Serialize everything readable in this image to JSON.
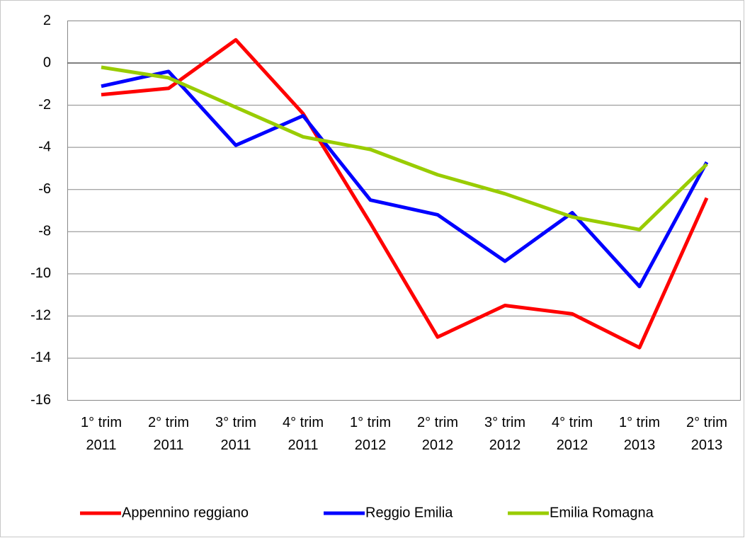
{
  "chart_data": {
    "type": "line",
    "categories": [
      "1° trim 2011",
      "2° trim 2011",
      "3° trim 2011",
      "4° trim 2011",
      "1° trim 2012",
      "2° trim 2012",
      "3° trim 2012",
      "4° trim 2012",
      "1° trim 2013",
      "2° trim 2013"
    ],
    "series": [
      {
        "name": "Appennino reggiano",
        "color": "#ff0000",
        "values": [
          -1.5,
          -1.2,
          1.1,
          -2.4,
          -7.6,
          -13.0,
          -11.5,
          -11.9,
          -13.5,
          -6.4
        ]
      },
      {
        "name": "Reggio Emilia",
        "color": "#0000ff",
        "values": [
          -1.1,
          -0.4,
          -3.9,
          -2.5,
          -6.5,
          -7.2,
          -9.4,
          -7.1,
          -10.6,
          -4.7
        ]
      },
      {
        "name": "Emilia Romagna",
        "color": "#99cc00",
        "values": [
          -0.2,
          -0.7,
          -2.1,
          -3.5,
          -4.1,
          -5.3,
          -6.2,
          -7.3,
          -7.9,
          -4.8
        ]
      }
    ],
    "ylim": [
      -16,
      2
    ],
    "yticks": [
      -16,
      -14,
      -12,
      -10,
      -8,
      -6,
      -4,
      -2,
      0,
      2
    ],
    "grid": true,
    "legend": "bottom"
  }
}
